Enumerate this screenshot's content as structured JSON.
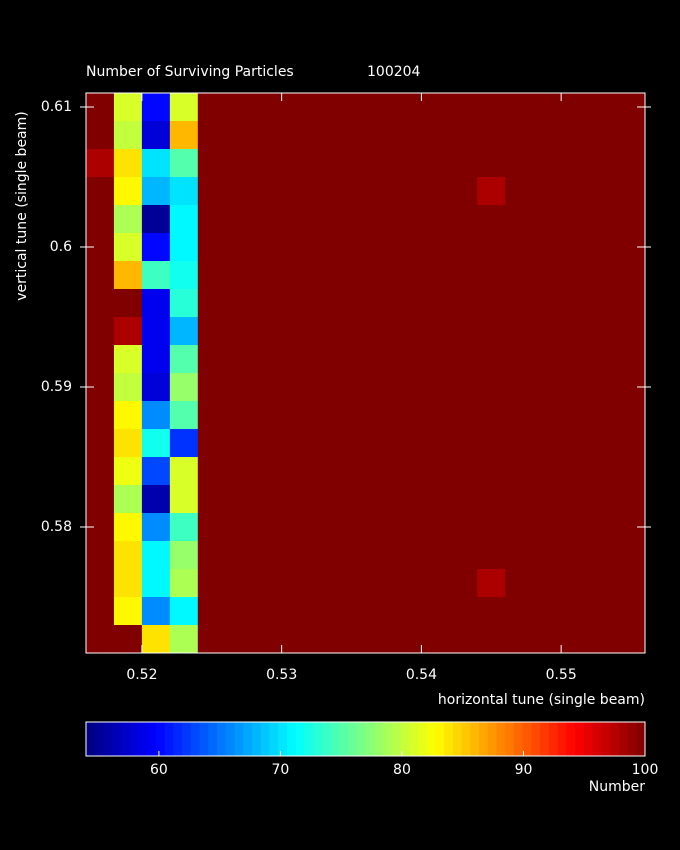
{
  "chart_data": {
    "type": "heatmap",
    "title": "Number of Surviving Particles",
    "run_id": "100204",
    "x_label": "horizontal tune (single beam)",
    "y_label": "vertical tune (single beam)",
    "x": [
      0.517,
      0.519,
      0.521,
      0.523,
      0.525,
      0.527,
      0.529,
      0.531,
      0.533,
      0.535,
      0.537,
      0.539,
      0.541,
      0.543,
      0.545,
      0.547,
      0.549,
      0.551,
      0.553,
      0.555
    ],
    "y": [
      0.61,
      0.608,
      0.606,
      0.604,
      0.602,
      0.6,
      0.598,
      0.596,
      0.594,
      0.592,
      0.59,
      0.588,
      0.586,
      0.584,
      0.582,
      0.58,
      0.578,
      0.576,
      0.574,
      0.572
    ],
    "values": [
      [
        100,
        81,
        60,
        81,
        100,
        100,
        100,
        100,
        100,
        100,
        100,
        100,
        100,
        100,
        100,
        100,
        100,
        100,
        100,
        100
      ],
      [
        100,
        80,
        58,
        86,
        100,
        100,
        100,
        100,
        100,
        100,
        100,
        100,
        100,
        100,
        100,
        100,
        100,
        100,
        100,
        100
      ],
      [
        98,
        84,
        70,
        75,
        100,
        100,
        100,
        100,
        100,
        100,
        100,
        100,
        100,
        100,
        100,
        100,
        100,
        100,
        100,
        100
      ],
      [
        100,
        83,
        68,
        70,
        100,
        100,
        100,
        100,
        100,
        100,
        100,
        100,
        100,
        100,
        98,
        100,
        100,
        100,
        100,
        100
      ],
      [
        100,
        79,
        55,
        71,
        100,
        100,
        100,
        100,
        100,
        100,
        100,
        100,
        100,
        100,
        100,
        100,
        100,
        100,
        100,
        100
      ],
      [
        100,
        81,
        60,
        71,
        100,
        100,
        100,
        100,
        100,
        100,
        100,
        100,
        100,
        100,
        100,
        100,
        100,
        100,
        100,
        100
      ],
      [
        100,
        86,
        74,
        72,
        100,
        100,
        100,
        100,
        100,
        100,
        100,
        100,
        100,
        100,
        100,
        100,
        100,
        100,
        100,
        100
      ],
      [
        100,
        100,
        59,
        73,
        100,
        100,
        100,
        100,
        100,
        100,
        100,
        100,
        100,
        100,
        100,
        100,
        100,
        100,
        100,
        100
      ],
      [
        100,
        98,
        59,
        68,
        100,
        100,
        100,
        100,
        100,
        100,
        100,
        100,
        100,
        100,
        100,
        100,
        100,
        100,
        100,
        100
      ],
      [
        100,
        81,
        59,
        75,
        100,
        100,
        100,
        100,
        100,
        100,
        100,
        100,
        100,
        100,
        100,
        100,
        100,
        100,
        100,
        100
      ],
      [
        100,
        80,
        58,
        78,
        100,
        100,
        100,
        100,
        100,
        100,
        100,
        100,
        100,
        100,
        100,
        100,
        100,
        100,
        100,
        100
      ],
      [
        100,
        83,
        66,
        75,
        100,
        100,
        100,
        100,
        100,
        100,
        100,
        100,
        100,
        100,
        100,
        100,
        100,
        100,
        100,
        100
      ],
      [
        100,
        84,
        72,
        62,
        100,
        100,
        100,
        100,
        100,
        100,
        100,
        100,
        100,
        100,
        100,
        100,
        100,
        100,
        100,
        100
      ],
      [
        100,
        82,
        63,
        81,
        100,
        100,
        100,
        100,
        100,
        100,
        100,
        100,
        100,
        100,
        100,
        100,
        100,
        100,
        100,
        100
      ],
      [
        100,
        79,
        56,
        81,
        100,
        100,
        100,
        100,
        100,
        100,
        100,
        100,
        100,
        100,
        100,
        100,
        100,
        100,
        100,
        100
      ],
      [
        100,
        83,
        66,
        74,
        100,
        100,
        100,
        100,
        100,
        100,
        100,
        100,
        100,
        100,
        100,
        100,
        100,
        100,
        100,
        100
      ],
      [
        100,
        84,
        71,
        78,
        100,
        100,
        100,
        100,
        100,
        100,
        100,
        100,
        100,
        100,
        100,
        100,
        100,
        100,
        100,
        100
      ],
      [
        100,
        84,
        71,
        79,
        100,
        100,
        100,
        100,
        100,
        100,
        100,
        100,
        100,
        100,
        98,
        100,
        100,
        100,
        100,
        100
      ],
      [
        100,
        83,
        66,
        71,
        100,
        100,
        100,
        100,
        100,
        100,
        100,
        100,
        100,
        100,
        100,
        100,
        100,
        100,
        100,
        100
      ],
      [
        100,
        100,
        84,
        79,
        100,
        100,
        100,
        100,
        100,
        100,
        100,
        100,
        100,
        100,
        100,
        100,
        100,
        100,
        100,
        100
      ]
    ],
    "xlim": [
      0.516,
      0.556
    ],
    "xticks": [
      0.52,
      0.53,
      0.54,
      0.55
    ],
    "ylim": [
      0.571,
      0.611
    ],
    "yticks": [
      0.58,
      0.59,
      0.6,
      0.61
    ],
    "colormap": "jet",
    "zlim": [
      54,
      100
    ],
    "zticks": [
      60,
      70,
      80,
      90,
      100
    ],
    "colorbar_label": "Number"
  }
}
